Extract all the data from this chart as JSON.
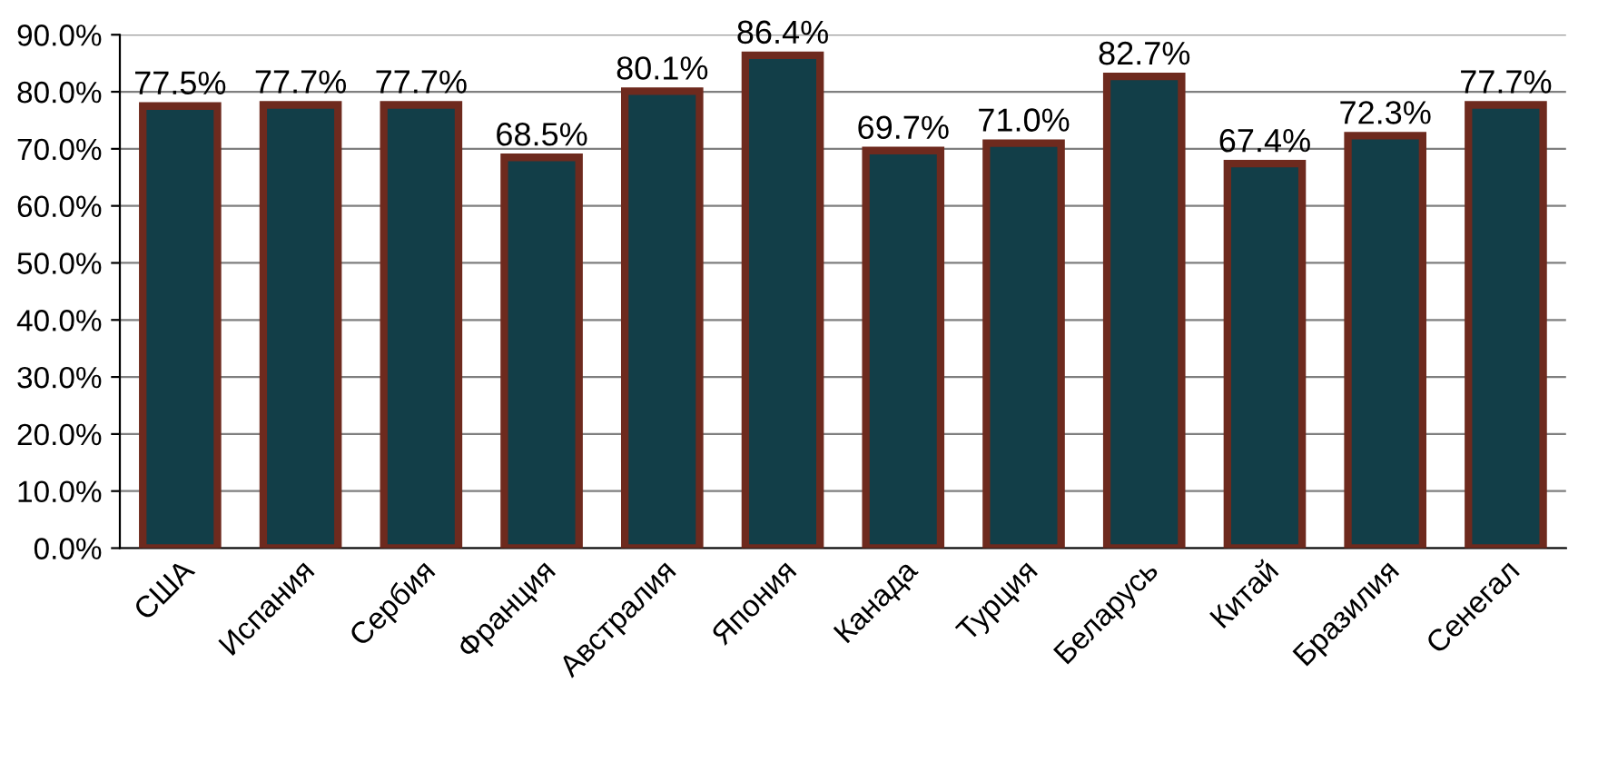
{
  "chart_data": {
    "type": "bar",
    "categories": [
      "США",
      "Испания",
      "Сербия",
      "Франция",
      "Австралия",
      "Япония",
      "Канада",
      "Турция",
      "Беларусь",
      "Китай",
      "Бразилия",
      "Сенегал"
    ],
    "values": [
      77.5,
      77.7,
      77.7,
      68.5,
      80.1,
      86.4,
      69.7,
      71.0,
      82.7,
      67.4,
      72.3,
      77.7
    ],
    "value_labels": [
      "77.5%",
      "77.7%",
      "77.7%",
      "68.5%",
      "80.1%",
      "86.4%",
      "69.7%",
      "71.0%",
      "82.7%",
      "67.4%",
      "72.3%",
      "77.7%"
    ],
    "color": "#123e48",
    "ylim": [
      0,
      90
    ],
    "yticks": [
      {
        "value": 0,
        "label": "0.0%"
      },
      {
        "value": 10,
        "label": "10.0%"
      },
      {
        "value": 20,
        "label": "20.0%"
      },
      {
        "value": 30,
        "label": "30.0%"
      },
      {
        "value": 40,
        "label": "40.0%"
      },
      {
        "value": 50,
        "label": "50.0%"
      },
      {
        "value": 60,
        "label": "60.0%"
      },
      {
        "value": 70,
        "label": "70.0%"
      },
      {
        "value": 80,
        "label": "80.0%"
      },
      {
        "value": 90,
        "label": "90.0%"
      }
    ],
    "grid": "y",
    "legend": false
  }
}
